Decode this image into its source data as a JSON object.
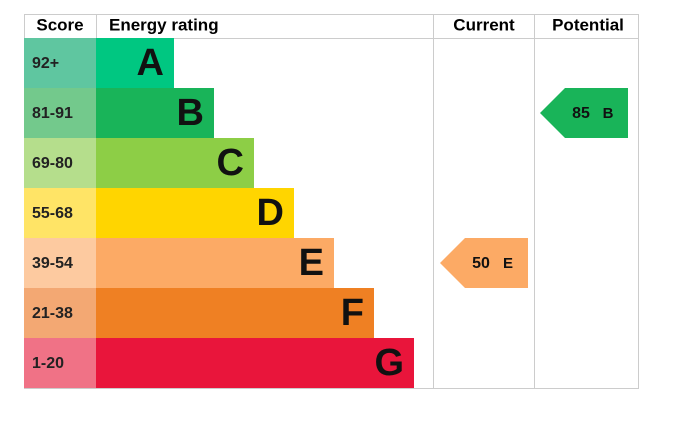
{
  "header": {
    "score": "Score",
    "rating": "Energy rating",
    "current": "Current",
    "potential": "Potential"
  },
  "bands": [
    {
      "score": "92+",
      "letter": "A",
      "color": "#00c781",
      "score_color": "#5fc6a0"
    },
    {
      "score": "81-91",
      "letter": "B",
      "color": "#19b459",
      "score_color": "#73c98c"
    },
    {
      "score": "69-80",
      "letter": "C",
      "color": "#8dce46",
      "score_color": "#b5de8c"
    },
    {
      "score": "55-68",
      "letter": "D",
      "color": "#ffd500",
      "score_color": "#ffe466"
    },
    {
      "score": "39-54",
      "letter": "E",
      "color": "#fcaa65",
      "score_color": "#fdcaa0"
    },
    {
      "score": "21-38",
      "letter": "F",
      "color": "#ef8023",
      "score_color": "#f3a873"
    },
    {
      "score": "1-20",
      "letter": "G",
      "color": "#e9153b",
      "score_color": "#f07286"
    }
  ],
  "current": {
    "value": 50,
    "letter": "E"
  },
  "potential": {
    "value": 85,
    "letter": "B"
  }
}
